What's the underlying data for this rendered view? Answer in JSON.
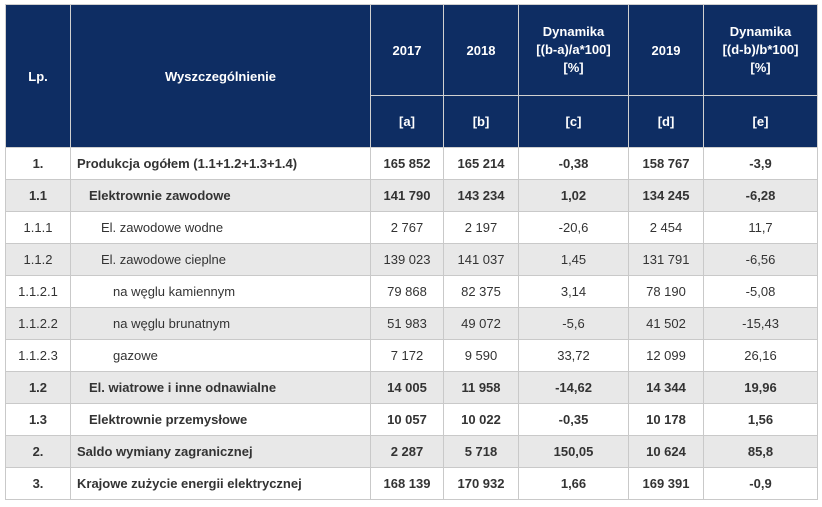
{
  "table": {
    "header": {
      "lp": "Lp.",
      "name": "Wyszczególnienie",
      "years": [
        "2017",
        "2018",
        "2019"
      ],
      "dyn1": [
        "Dynamika",
        "[(b-a)/a*100]",
        "[%]"
      ],
      "dyn2": [
        "Dynamika",
        "[(d-b)/b*100]",
        "[%]"
      ],
      "letters": [
        "[a]",
        "[b]",
        "[c]",
        "[d]",
        "[e]"
      ]
    },
    "rows": [
      [
        "1.",
        "Produkcja ogółem (1.1+1.2+1.3+1.4)",
        "165 852",
        "165 214",
        "-0,38",
        "158 767",
        "-3,9"
      ],
      [
        "1.1",
        "Elektrownie zawodowe",
        "141 790",
        "143 234",
        "1,02",
        "134 245",
        "-6,28"
      ],
      [
        "1.1.1",
        "El. zawodowe wodne",
        "2 767",
        "2 197",
        "-20,6",
        "2 454",
        "11,7"
      ],
      [
        "1.1.2",
        "El. zawodowe cieplne",
        "139 023",
        "141 037",
        "1,45",
        "131 791",
        "-6,56"
      ],
      [
        "1.1.2.1",
        "na węglu kamiennym",
        "79 868",
        "82 375",
        "3,14",
        "78 190",
        "-5,08"
      ],
      [
        "1.1.2.2",
        "na węglu brunatnym",
        "51 983",
        "49 072",
        "-5,6",
        "41 502",
        "-15,43"
      ],
      [
        "1.1.2.3",
        "gazowe",
        "7 172",
        "9 590",
        "33,72",
        "12 099",
        "26,16"
      ],
      [
        "1.2",
        "El. wiatrowe i inne odnawialne",
        "14 005",
        "11 958",
        "-14,62",
        "14 344",
        "19,96"
      ],
      [
        "1.3",
        "Elektrownie przemysłowe",
        "10 057",
        "10 022",
        "-0,35",
        "10 178",
        "1,56"
      ],
      [
        "2.",
        "Saldo wymiany zagranicznej",
        "2 287",
        "5 718",
        "150,05",
        "10 624",
        "85,8"
      ],
      [
        "3.",
        "Krajowe zużycie energii elektrycznej",
        "168 139",
        "170 932",
        "1,66",
        "169 391",
        "-0,9"
      ]
    ]
  }
}
